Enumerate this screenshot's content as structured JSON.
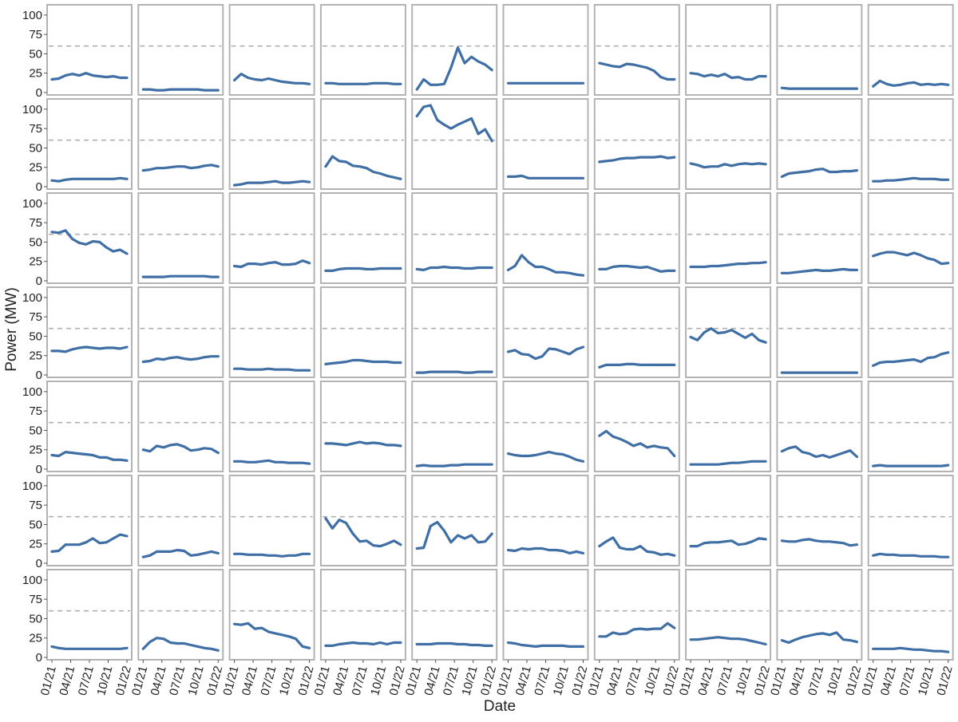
{
  "chart_data": {
    "type": "line",
    "layout": "small-multiples",
    "rows": 7,
    "cols": 10,
    "xlabel": "Date",
    "ylabel": "Power (MW)",
    "ylim": [
      0,
      105
    ],
    "yticks": [
      0,
      25,
      50,
      75,
      100
    ],
    "xtick_labels": [
      "01/21",
      "04/21",
      "07/21",
      "10/21",
      "01/22"
    ],
    "x": [
      "2021-01",
      "2021-02",
      "2021-03",
      "2021-04",
      "2021-05",
      "2021-06",
      "2021-07",
      "2021-08",
      "2021-09",
      "2021-10",
      "2021-11",
      "2021-12"
    ],
    "reference_line": 60,
    "grid": false,
    "colors": {
      "line": "#3f6fa5",
      "reference": "#b0b0b0",
      "panel_border": "#b3b3b3"
    },
    "panels": [
      [
        17,
        18,
        22,
        24,
        22,
        25,
        22,
        21,
        20,
        21,
        19,
        19
      ],
      [
        4,
        4,
        3,
        3,
        4,
        4,
        4,
        4,
        4,
        3,
        3,
        3
      ],
      [
        16,
        24,
        19,
        17,
        16,
        18,
        16,
        14,
        13,
        12,
        12,
        11
      ],
      [
        12,
        12,
        11,
        11,
        11,
        11,
        11,
        12,
        12,
        12,
        11,
        11
      ],
      [
        4,
        17,
        10,
        10,
        11,
        32,
        58,
        38,
        46,
        40,
        36,
        29
      ],
      [
        12,
        12,
        12,
        12,
        12,
        12,
        12,
        12,
        12,
        12,
        12,
        12
      ],
      [
        38,
        36,
        34,
        33,
        37,
        36,
        34,
        32,
        28,
        20,
        17,
        17
      ],
      [
        25,
        24,
        21,
        23,
        21,
        24,
        19,
        20,
        17,
        17,
        21,
        21
      ],
      [
        6,
        5,
        5,
        5,
        5,
        5,
        5,
        5,
        5,
        5,
        5,
        5
      ],
      [
        8,
        15,
        11,
        9,
        10,
        12,
        13,
        10,
        11,
        10,
        11,
        10
      ],
      [
        8,
        7,
        9,
        10,
        10,
        10,
        10,
        10,
        10,
        10,
        11,
        10
      ],
      [
        21,
        22,
        24,
        24,
        25,
        26,
        26,
        24,
        25,
        27,
        28,
        26
      ],
      [
        2,
        3,
        5,
        5,
        5,
        6,
        7,
        5,
        5,
        6,
        7,
        6
      ],
      [
        26,
        39,
        33,
        32,
        27,
        26,
        24,
        19,
        17,
        14,
        12,
        10
      ],
      [
        91,
        103,
        105,
        86,
        80,
        75,
        80,
        84,
        88,
        68,
        74,
        59
      ],
      [
        13,
        13,
        14,
        11,
        11,
        11,
        11,
        11,
        11,
        11,
        11,
        11
      ],
      [
        32,
        33,
        34,
        36,
        37,
        37,
        38,
        38,
        38,
        39,
        37,
        38
      ],
      [
        30,
        28,
        25,
        26,
        26,
        29,
        27,
        29,
        30,
        29,
        30,
        29
      ],
      [
        13,
        17,
        18,
        19,
        20,
        22,
        23,
        19,
        19,
        20,
        20,
        21
      ],
      [
        7,
        7,
        8,
        8,
        9,
        10,
        11,
        10,
        10,
        10,
        9,
        9
      ],
      [
        63,
        62,
        65,
        54,
        49,
        47,
        51,
        50,
        43,
        38,
        40,
        35
      ],
      [
        5,
        5,
        5,
        5,
        6,
        6,
        6,
        6,
        6,
        6,
        5,
        5
      ],
      [
        19,
        18,
        22,
        22,
        21,
        23,
        24,
        21,
        21,
        22,
        26,
        23
      ],
      [
        13,
        13,
        15,
        16,
        16,
        16,
        15,
        15,
        16,
        16,
        16,
        16
      ],
      [
        15,
        14,
        17,
        17,
        18,
        17,
        17,
        16,
        16,
        17,
        17,
        17
      ],
      [
        14,
        19,
        33,
        24,
        18,
        18,
        15,
        11,
        11,
        10,
        8,
        7
      ],
      [
        15,
        15,
        18,
        19,
        19,
        18,
        17,
        18,
        15,
        12,
        13,
        13
      ],
      [
        18,
        18,
        18,
        19,
        19,
        20,
        21,
        22,
        22,
        23,
        23,
        24
      ],
      [
        10,
        10,
        11,
        12,
        13,
        14,
        13,
        13,
        14,
        15,
        14,
        14
      ],
      [
        32,
        35,
        37,
        37,
        35,
        33,
        36,
        33,
        29,
        27,
        22,
        23
      ],
      [
        31,
        31,
        30,
        33,
        35,
        36,
        35,
        34,
        35,
        35,
        34,
        36
      ],
      [
        17,
        18,
        21,
        20,
        22,
        23,
        21,
        20,
        21,
        23,
        24,
        24
      ],
      [
        8,
        8,
        7,
        7,
        7,
        8,
        7,
        7,
        7,
        6,
        6,
        6
      ],
      [
        14,
        15,
        16,
        17,
        19,
        19,
        18,
        17,
        17,
        17,
        16,
        16
      ],
      [
        3,
        3,
        4,
        4,
        4,
        4,
        4,
        3,
        3,
        4,
        4,
        4
      ],
      [
        30,
        32,
        27,
        26,
        21,
        24,
        34,
        33,
        30,
        27,
        33,
        36
      ],
      [
        10,
        13,
        13,
        13,
        14,
        14,
        13,
        13,
        13,
        13,
        13,
        13
      ],
      [
        49,
        45,
        55,
        60,
        54,
        55,
        58,
        53,
        48,
        53,
        45,
        42
      ],
      [
        3,
        3,
        3,
        3,
        3,
        3,
        3,
        3,
        3,
        3,
        3,
        3
      ],
      [
        12,
        16,
        17,
        17,
        18,
        19,
        20,
        17,
        22,
        23,
        27,
        29
      ],
      [
        18,
        17,
        22,
        21,
        20,
        19,
        18,
        15,
        15,
        12,
        12,
        11
      ],
      [
        25,
        23,
        30,
        28,
        31,
        32,
        29,
        24,
        25,
        27,
        26,
        21
      ],
      [
        10,
        10,
        9,
        9,
        10,
        11,
        9,
        9,
        8,
        8,
        8,
        7
      ],
      [
        33,
        33,
        32,
        31,
        33,
        35,
        33,
        34,
        33,
        31,
        31,
        30
      ],
      [
        4,
        5,
        4,
        4,
        4,
        5,
        5,
        6,
        6,
        6,
        6,
        6
      ],
      [
        20,
        18,
        17,
        17,
        18,
        20,
        22,
        20,
        19,
        16,
        12,
        10
      ],
      [
        43,
        49,
        42,
        39,
        35,
        30,
        33,
        28,
        30,
        28,
        27,
        17
      ],
      [
        6,
        6,
        6,
        6,
        6,
        7,
        8,
        8,
        9,
        10,
        10,
        10
      ],
      [
        23,
        27,
        29,
        22,
        20,
        16,
        18,
        15,
        18,
        21,
        24,
        16
      ],
      [
        4,
        5,
        4,
        4,
        4,
        4,
        4,
        4,
        4,
        4,
        4,
        5
      ],
      [
        15,
        16,
        24,
        24,
        24,
        27,
        32,
        26,
        27,
        32,
        37,
        35
      ],
      [
        8,
        10,
        15,
        15,
        15,
        17,
        16,
        10,
        11,
        13,
        15,
        13
      ],
      [
        12,
        12,
        11,
        11,
        11,
        10,
        10,
        9,
        10,
        10,
        12,
        12
      ],
      [
        58,
        45,
        56,
        52,
        38,
        28,
        29,
        23,
        22,
        25,
        29,
        24
      ],
      [
        19,
        20,
        48,
        53,
        42,
        27,
        36,
        32,
        36,
        27,
        28,
        38
      ],
      [
        17,
        16,
        19,
        18,
        19,
        19,
        17,
        17,
        16,
        13,
        15,
        13
      ],
      [
        22,
        28,
        33,
        20,
        18,
        18,
        22,
        15,
        14,
        11,
        12,
        10
      ],
      [
        22,
        22,
        26,
        27,
        27,
        28,
        29,
        24,
        25,
        28,
        32,
        31
      ],
      [
        29,
        28,
        28,
        30,
        31,
        29,
        28,
        28,
        27,
        26,
        23,
        24
      ],
      [
        10,
        12,
        11,
        11,
        10,
        10,
        10,
        9,
        9,
        9,
        8,
        8
      ],
      [
        14,
        12,
        11,
        11,
        11,
        11,
        11,
        11,
        11,
        11,
        11,
        12
      ],
      [
        11,
        20,
        25,
        24,
        19,
        18,
        18,
        16,
        14,
        12,
        11,
        9
      ],
      [
        43,
        42,
        44,
        37,
        38,
        33,
        31,
        29,
        27,
        24,
        14,
        12
      ],
      [
        15,
        15,
        17,
        18,
        19,
        18,
        18,
        17,
        19,
        17,
        19,
        19
      ],
      [
        17,
        17,
        17,
        18,
        18,
        18,
        17,
        17,
        16,
        16,
        15,
        15
      ],
      [
        19,
        18,
        16,
        15,
        14,
        15,
        15,
        15,
        15,
        14,
        14,
        14
      ],
      [
        27,
        27,
        32,
        30,
        31,
        36,
        37,
        36,
        37,
        37,
        44,
        38
      ],
      [
        23,
        23,
        24,
        25,
        26,
        25,
        24,
        24,
        23,
        21,
        19,
        17
      ],
      [
        22,
        19,
        23,
        26,
        28,
        30,
        31,
        29,
        32,
        23,
        22,
        20
      ],
      [
        11,
        11,
        11,
        11,
        12,
        11,
        10,
        10,
        9,
        8,
        8,
        7
      ]
    ]
  }
}
